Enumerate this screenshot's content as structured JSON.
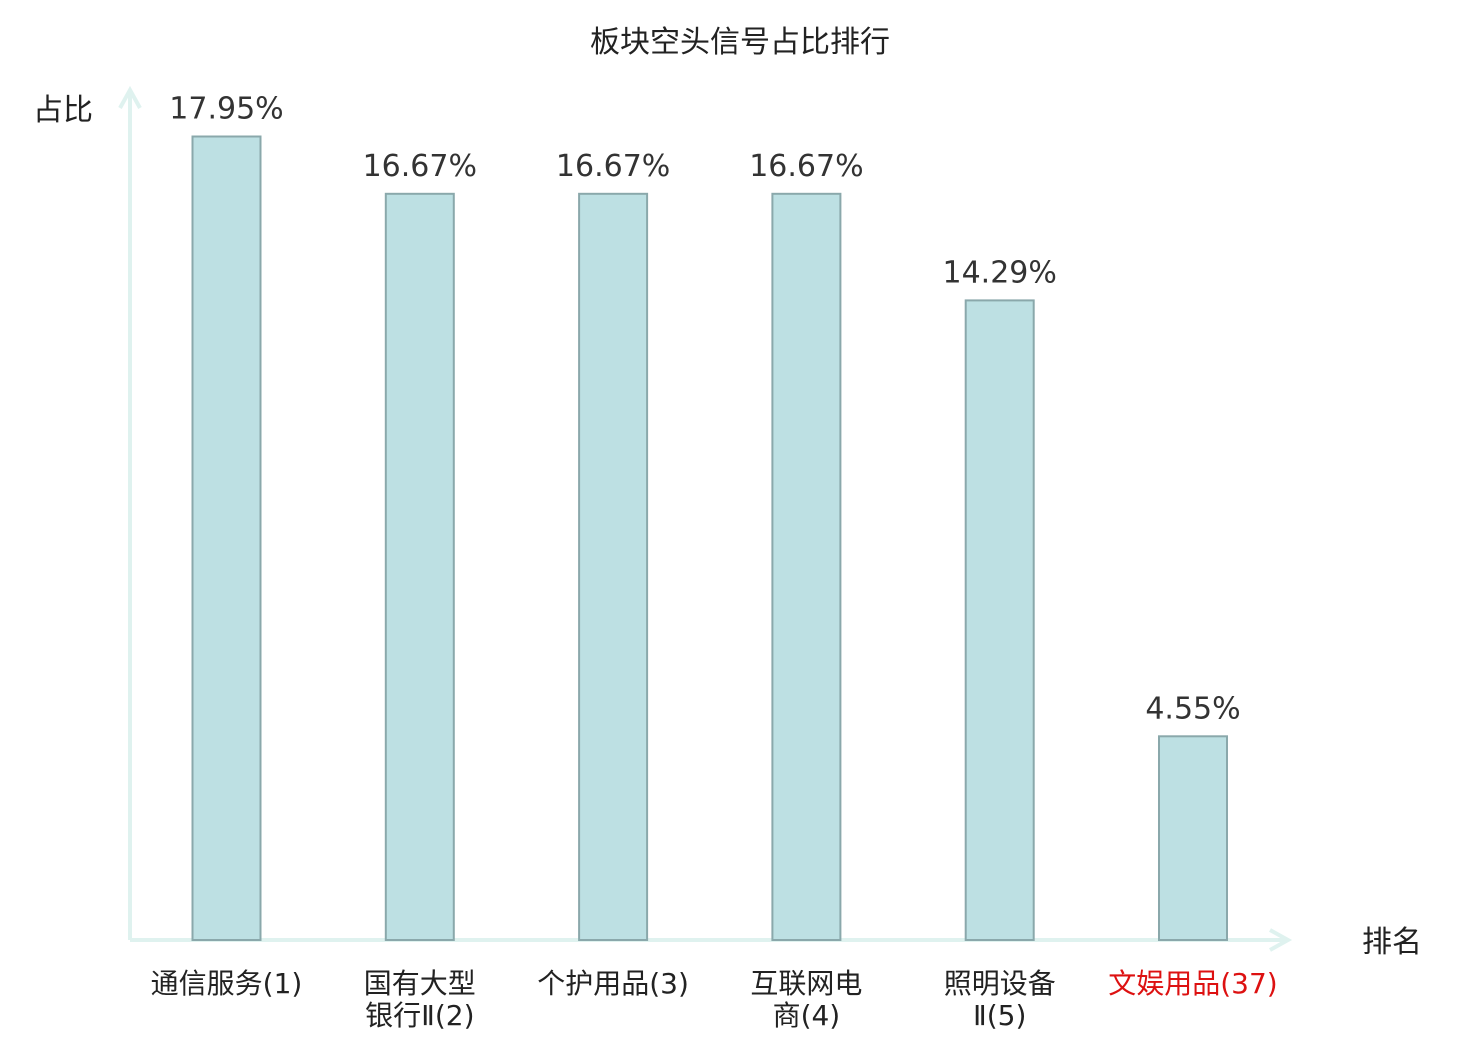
{
  "chart_data": {
    "type": "bar",
    "title": "板块空头信号占比排行",
    "ylabel": "占比",
    "xlabel": "排名",
    "ylim": [
      0,
      18.9
    ],
    "grid": false,
    "categories": [
      {
        "name_lines": [
          "通信服务(1)"
        ],
        "highlight": false
      },
      {
        "name_lines": [
          "国有大型",
          "银行Ⅱ(2)"
        ],
        "highlight": false
      },
      {
        "name_lines": [
          "个护用品(3)"
        ],
        "highlight": false
      },
      {
        "name_lines": [
          "互联网电",
          "商(4)"
        ],
        "highlight": false
      },
      {
        "name_lines": [
          "照明设备",
          "Ⅱ(5)"
        ],
        "highlight": false
      },
      {
        "name_lines": [
          "文娱用品(37)"
        ],
        "highlight": true
      }
    ],
    "values": [
      17.95,
      16.67,
      16.67,
      16.67,
      14.29,
      4.55
    ],
    "value_labels": [
      "17.95%",
      "16.67%",
      "16.67%",
      "16.67%",
      "14.29%",
      "4.55%"
    ],
    "colors": {
      "bar_fill": "#bde0e3",
      "bar_stroke": "#8aa8ab",
      "axis": "#dff2ef",
      "text": "#222222",
      "highlight_text": "#dd1111"
    }
  }
}
